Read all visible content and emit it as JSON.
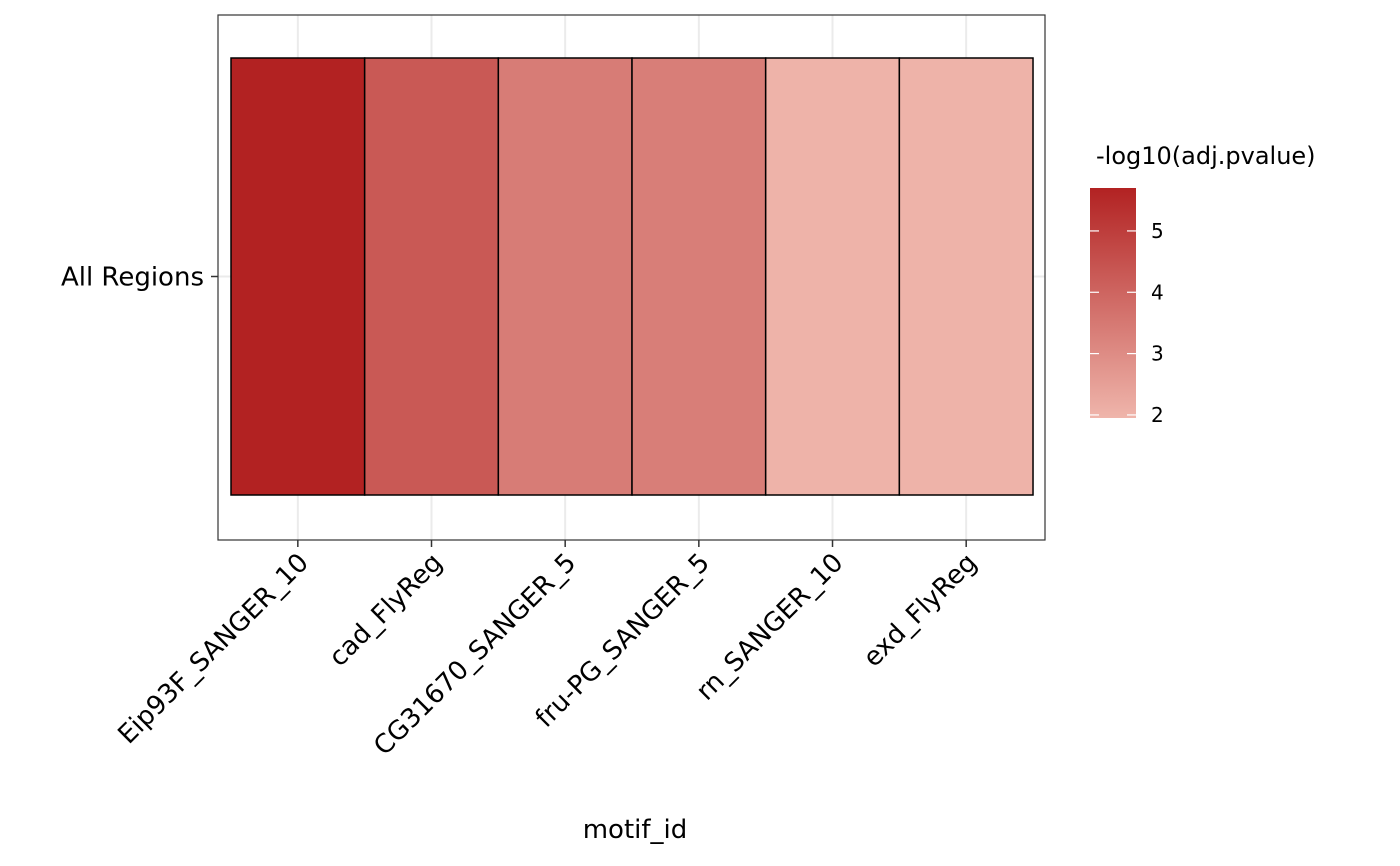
{
  "chart_data": {
    "type": "heatmap",
    "xlabel": "motif_id",
    "ylabel": "",
    "x_categories": [
      "Eip93F_SANGER_10",
      "cad_FlyReg",
      "CG31670_SANGER_5",
      "fru-PG_SANGER_5",
      "rn_SANGER_10",
      "exd_FlyReg"
    ],
    "y_categories": [
      "All Regions"
    ],
    "values": [
      5.7,
      4.3,
      3.4,
      3.35,
      2.0,
      2.0
    ],
    "legend": {
      "title": "-log10(adj.pvalue)",
      "ticks": [
        2,
        3,
        4,
        5
      ],
      "range": [
        1.95,
        5.7
      ],
      "low_color": "#efb5ab",
      "high_color": "#b22222",
      "placement": "right"
    },
    "grid": true
  }
}
